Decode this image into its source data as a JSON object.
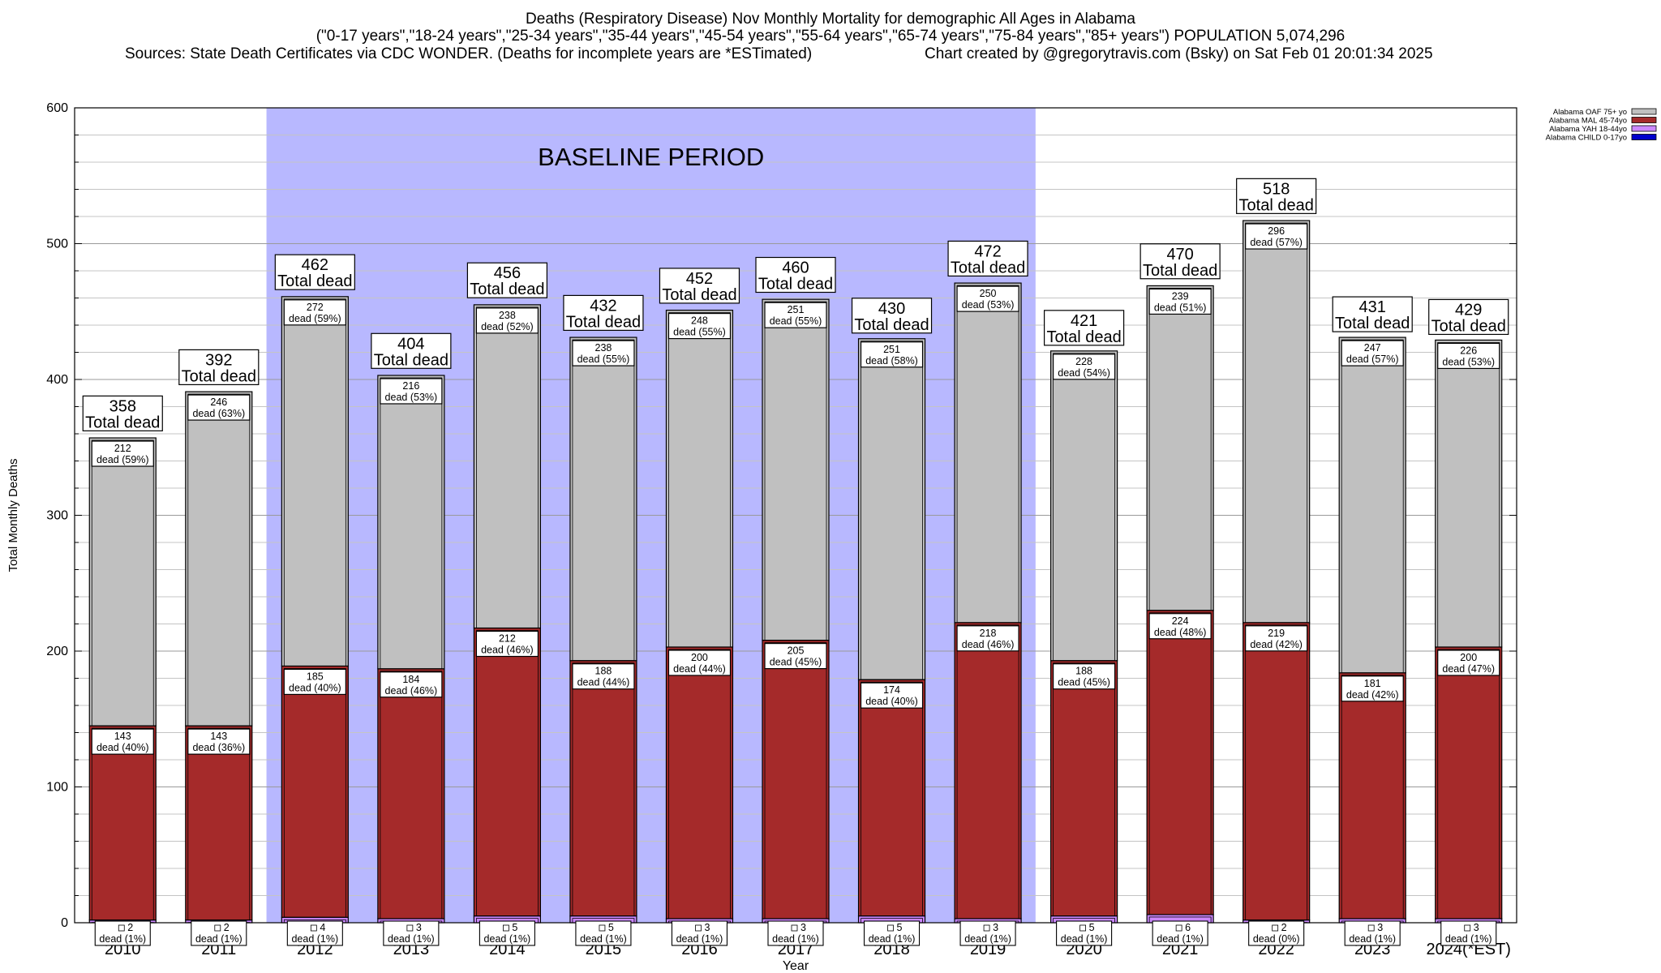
{
  "header": {
    "title": "Deaths (Respiratory Disease) Nov Monthly Mortality for demographic All Ages in Alabama",
    "subtitle": "(\"0-17 years\",\"18-24 years\",\"25-34 years\",\"35-44 years\",\"45-54 years\",\"55-64 years\",\"65-74 years\",\"75-84 years\",\"85+ years\") POPULATION 5,074,296",
    "sources": "Sources: State Death Certificates via CDC WONDER. (Deaths for incomplete years are *ESTimated)",
    "credit": "Chart created by @gregorytravis.com (Bsky) on Sat Feb 01 20:01:34 2025"
  },
  "chart_data": {
    "type": "bar",
    "stacked": true,
    "categories": [
      "2010",
      "2011",
      "2012",
      "2013",
      "2014",
      "2015",
      "2016",
      "2017",
      "2018",
      "2019",
      "2020",
      "2021",
      "2022",
      "2023",
      "2024(*EST)"
    ],
    "xlabel": "Year",
    "ylabel": "Total Monthly Deaths",
    "ylim": [
      0,
      600
    ],
    "yticks": [
      0,
      100,
      200,
      300,
      400,
      500,
      600
    ],
    "grid": true,
    "legend_position": "top-right",
    "baseline_period": {
      "label": "BASELINE PERIOD",
      "start": "2012",
      "end": "2019",
      "color": "#b8b8ff"
    },
    "total_label_text": "Total dead",
    "segment_label_word": "dead",
    "totals": [
      358,
      392,
      462,
      404,
      456,
      432,
      452,
      460,
      430,
      472,
      421,
      470,
      518,
      431,
      429
    ],
    "series": [
      {
        "name": "Alabama CHILD 0-17yo",
        "color": "#0000cc",
        "values": [
          0,
          0,
          0,
          0,
          0,
          0,
          0,
          0,
          0,
          0,
          0,
          0,
          0,
          0,
          0
        ],
        "pct": [],
        "labeled": false
      },
      {
        "name": "Alabama YAH 18-44yo",
        "color": "#cc88ff",
        "values": [
          2,
          2,
          4,
          3,
          5,
          5,
          3,
          3,
          5,
          3,
          5,
          6,
          2,
          3,
          3
        ],
        "pct": [
          1,
          1,
          1,
          1,
          1,
          1,
          1,
          1,
          1,
          1,
          1,
          1,
          0,
          1,
          1
        ],
        "labeled": true
      },
      {
        "name": "Alabama MAL 45-74yo",
        "color": "#a52a2a",
        "values": [
          143,
          143,
          185,
          184,
          212,
          188,
          200,
          205,
          174,
          218,
          188,
          224,
          219,
          181,
          200
        ],
        "pct": [
          40,
          36,
          40,
          46,
          46,
          44,
          44,
          45,
          40,
          46,
          45,
          48,
          42,
          42,
          47
        ],
        "labeled": true
      },
      {
        "name": "Alabama OAF 75+ yo",
        "color": "#c0c0c0",
        "values": [
          212,
          246,
          272,
          216,
          238,
          238,
          248,
          251,
          251,
          250,
          228,
          239,
          296,
          247,
          226
        ],
        "pct": [
          59,
          63,
          59,
          53,
          52,
          55,
          55,
          55,
          58,
          53,
          54,
          51,
          57,
          57,
          53
        ],
        "labeled": true
      }
    ]
  }
}
